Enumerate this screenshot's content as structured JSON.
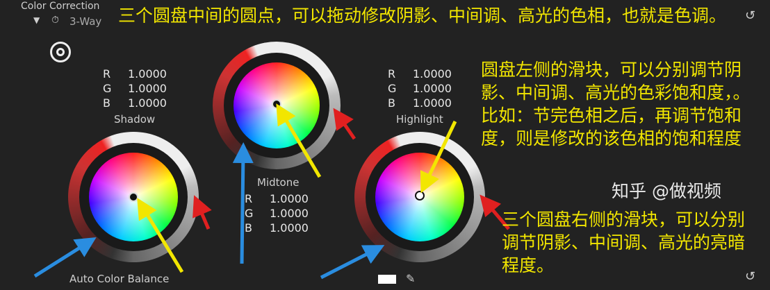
{
  "panel": {
    "section_title": "Color Correction",
    "effect_name": "3-Way",
    "auto_balance_label": "Auto Color Balance"
  },
  "wheels": {
    "shadow": {
      "label": "Shadow",
      "r": "1.0000",
      "g": "1.0000",
      "b": "1.0000"
    },
    "midtone": {
      "label": "Midtone",
      "r": "1.0000",
      "g": "1.0000",
      "b": "1.0000"
    },
    "highlight": {
      "label": "Highlight",
      "r": "1.0000",
      "g": "1.0000",
      "b": "1.0000"
    }
  },
  "channel_labels": {
    "r": "R",
    "g": "G",
    "b": "B"
  },
  "annotations": {
    "center_dot": "三个圆盘中间的圆点，可以拖动修改阴影、中间调、高光的色相，也就是色调。",
    "left_slider": "圆盘左侧的滑块，可以分别调节阴影、中间调、高光的色彩饱和度，。比如：节完色相之后，再调节饱和度，则是修改的该色相的饱和程度",
    "right_slider": "三个圆盘右侧的滑块，可以分别调节阴影、中间调、高光的亮暗程度。"
  },
  "watermark": "知乎 @做视频",
  "colors": {
    "annotation_text": "#f2e600",
    "arrow_red": "#e02020",
    "arrow_blue": "#2a8de0",
    "arrow_yellow": "#f2e600"
  }
}
